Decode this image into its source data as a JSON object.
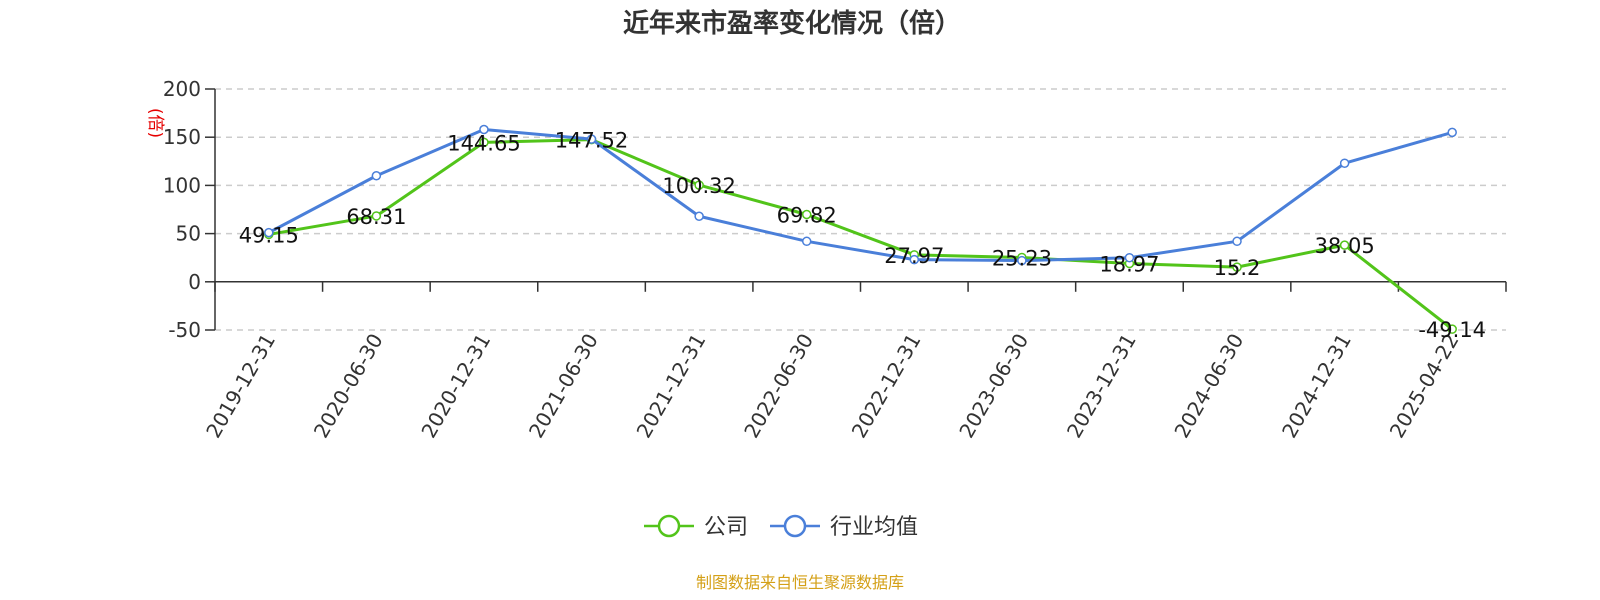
{
  "chart_data": {
    "type": "line",
    "title": "近年来市盈率变化情况（倍）",
    "ylabel": "(倍)",
    "categories": [
      "2019-12-31",
      "2020-06-30",
      "2020-12-31",
      "2021-06-30",
      "2021-12-31",
      "2022-06-30",
      "2022-12-31",
      "2023-06-30",
      "2023-12-31",
      "2024-06-30",
      "2024-12-31",
      "2025-04-22"
    ],
    "yticks": [
      -50,
      0,
      50,
      100,
      150,
      200
    ],
    "ylim": [
      -50,
      200
    ],
    "grid": true,
    "legend_position": "bottom",
    "series": [
      {
        "name": "公司",
        "color": "#52c41a",
        "values": [
          49.15,
          68.31,
          144.65,
          147.52,
          100.32,
          69.82,
          27.97,
          25.23,
          18.97,
          15.2,
          38.05,
          -49.14
        ],
        "labels": [
          "49.15",
          "68.31",
          "144.65",
          "147.52",
          "100.32",
          "69.82",
          "27.97",
          "25.23",
          "18.97",
          "15.2",
          "38.05",
          "-49.14"
        ]
      },
      {
        "name": "行业均值",
        "color": "#4a7fd9",
        "values": [
          51,
          110,
          158,
          148,
          68,
          42,
          23,
          22,
          25,
          42,
          123,
          155
        ]
      }
    ]
  },
  "source": {
    "text": "制图数据来自恒生聚源数据库",
    "color": "#d4a017"
  }
}
